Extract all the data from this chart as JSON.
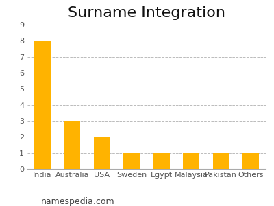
{
  "title": "Surname Integration",
  "categories": [
    "India",
    "Australia",
    "USA",
    "Sweden",
    "Egypt",
    "Malaysia",
    "Pakistan",
    "Others"
  ],
  "values": [
    8,
    3,
    2,
    1,
    1,
    1,
    1,
    1
  ],
  "bar_color": "#FFB300",
  "ylim": [
    0,
    9
  ],
  "yticks": [
    0,
    1,
    2,
    3,
    4,
    5,
    6,
    7,
    8,
    9
  ],
  "grid_color": "#BBBBBB",
  "title_fontsize": 16,
  "tick_fontsize": 8,
  "xtick_fontsize": 8,
  "watermark": "namespedia.com",
  "watermark_fontsize": 9,
  "background_color": "#FFFFFF"
}
